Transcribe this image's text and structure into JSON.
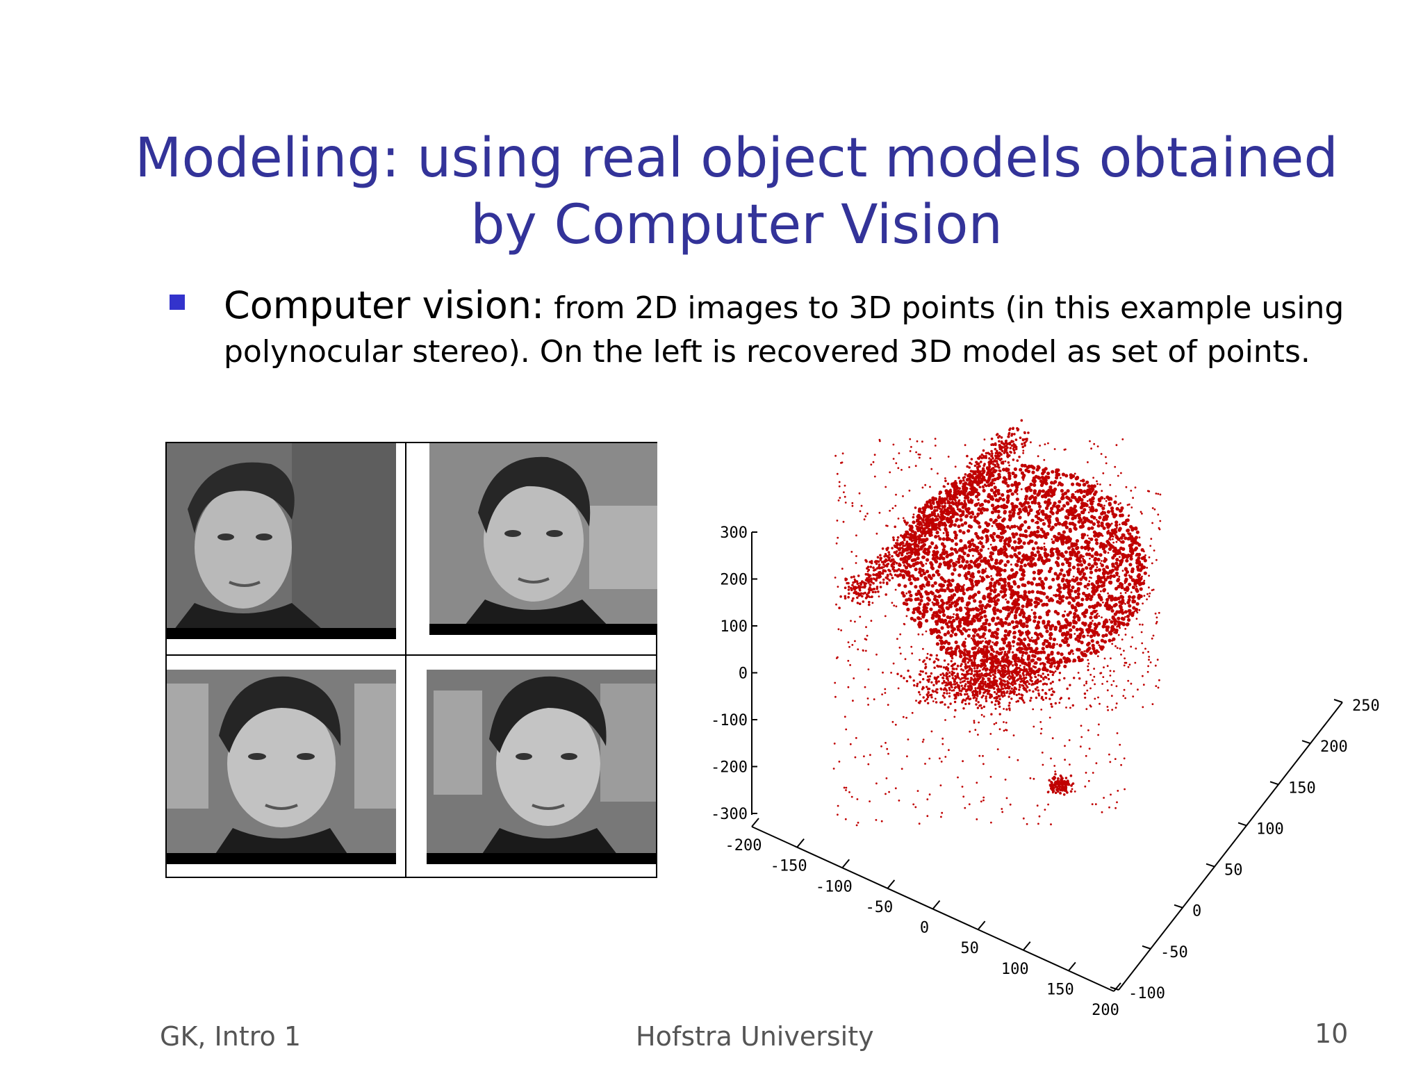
{
  "slide": {
    "title_line1": "Modeling: using real object models obtained",
    "title_line2": "by Computer Vision",
    "bullet_lead": "Computer vision:",
    "bullet_text": " from 2D images to 3D points (in this example using polynocular stereo). On the left is recovered 3D model as set of points.",
    "title_color": "#333399",
    "bullet_color": "#3333cc",
    "point_color": "#c00000"
  },
  "plot": {
    "z_ticks": [
      "300",
      "200",
      "100",
      "0",
      "-100",
      "-200",
      "-300"
    ],
    "x_ticks": [
      "-200",
      "-150",
      "-100",
      "-50",
      "0",
      "50",
      "100",
      "150",
      "200"
    ],
    "y_ticks": [
      "-100",
      "-50",
      "0",
      "50",
      "100",
      "150",
      "200",
      "250"
    ]
  },
  "footer": {
    "left": "GK, Intro 1",
    "center": "Hofstra University",
    "page": "10"
  }
}
